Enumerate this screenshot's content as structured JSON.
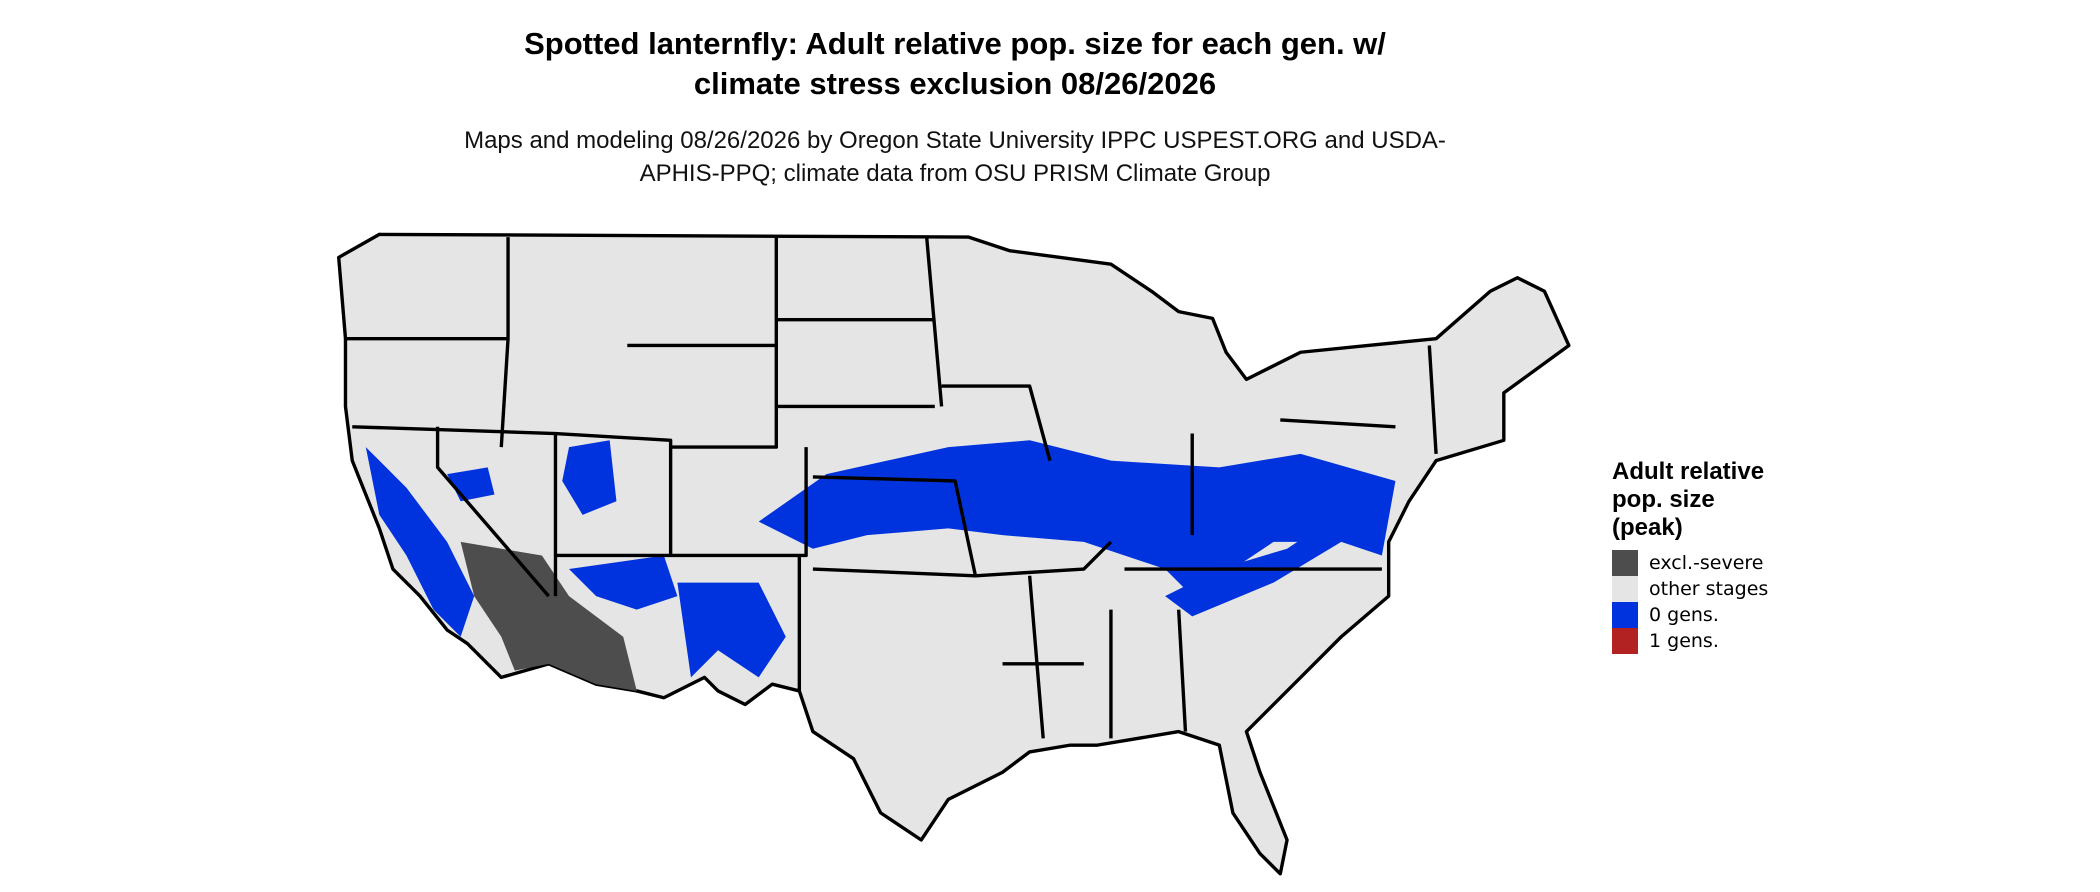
{
  "title": "Spotted lanternfly: Adult relative pop. size for each gen. w/ climate stress exclusion 08/26/2026",
  "subtitle": "Maps and modeling 08/26/2026 by Oregon State University IPPC USPEST.ORG and USDA-APHIS-PPQ; climate data from OSU PRISM Climate Group",
  "legend": {
    "title": "Adult relative pop. size (peak)",
    "items": [
      {
        "label": "excl.-severe",
        "color": "#4d4d4d"
      },
      {
        "label": "other stages",
        "color": "#e5e5e5"
      },
      {
        "label": "0 gens.",
        "color": "#0033dd"
      },
      {
        "label": "1 gens.",
        "color": "#b22222"
      }
    ]
  }
}
